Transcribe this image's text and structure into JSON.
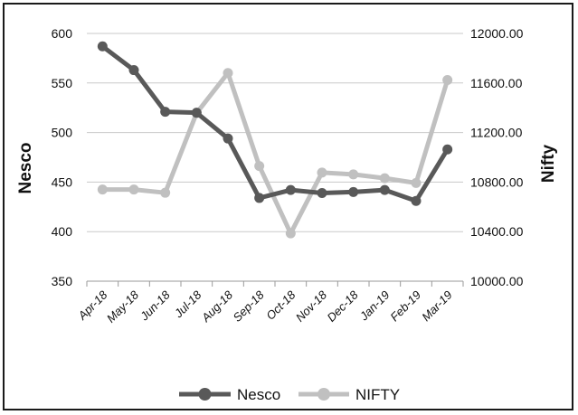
{
  "chart_data": {
    "type": "line",
    "categories": [
      "Apr-18",
      "May-18",
      "Jun-18",
      "Jul-18",
      "Aug-18",
      "Sep-18",
      "Oct-18",
      "Nov-18",
      "Dec-18",
      "Jan-19",
      "Feb-19",
      "Mar-19"
    ],
    "series": [
      {
        "name": "Nesco",
        "axis": "left",
        "color": "#595959",
        "values": [
          587,
          563,
          521,
          520,
          494,
          434,
          442,
          439,
          440,
          442,
          431,
          483
        ]
      },
      {
        "name": "NIFTY",
        "axis": "right",
        "color": "#c0c0c0",
        "values": [
          10740,
          10740,
          10714,
          11357,
          11681,
          10930,
          10386,
          10877,
          10862,
          10831,
          10793,
          11624
        ]
      }
    ],
    "ylabel": "Nesco",
    "y2label": "Nifty",
    "ylim": [
      350,
      600
    ],
    "y2lim": [
      10000,
      12000
    ],
    "yticks": [
      "600",
      "550",
      "500",
      "450",
      "400",
      "350"
    ],
    "y2ticks": [
      "12000.00",
      "11600.00",
      "11200.00",
      "10800.00",
      "10400.00",
      "10000.00"
    ],
    "grid": true,
    "legend_position": "bottom"
  }
}
